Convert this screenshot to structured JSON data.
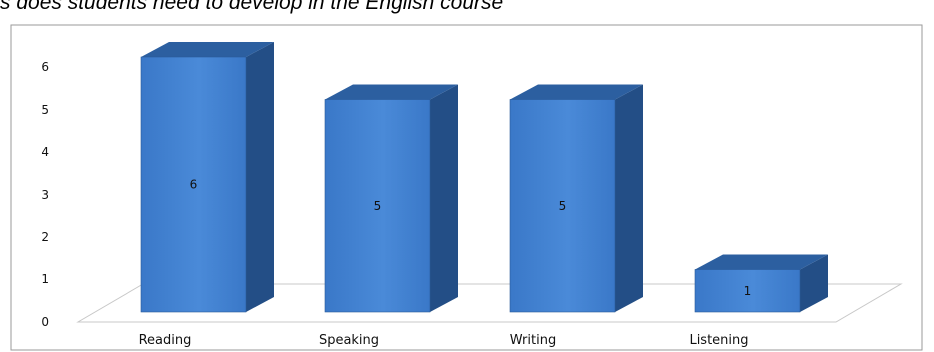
{
  "chart_data": {
    "type": "bar",
    "style": "3d",
    "title": "s does students need to develop in the English course",
    "categories": [
      "Reading",
      "Speaking",
      "Writing",
      "Listening"
    ],
    "values": [
      6,
      5,
      5,
      1
    ],
    "data_labels": [
      "6",
      "5",
      "5",
      "1"
    ],
    "ylim": [
      0,
      6
    ],
    "yticks": [
      0,
      1,
      2,
      3,
      4,
      5,
      6
    ],
    "xlabel": "",
    "ylabel": "",
    "grid": false,
    "legend": "none",
    "colors": {
      "bar_front": "#3a78c8",
      "bar_front_light": "#4a8ad8",
      "bar_side": "#234e86",
      "bar_top": "#2c5fa0",
      "floor_line": "#c8c8c8",
      "frame": "#9a9a9a"
    }
  }
}
